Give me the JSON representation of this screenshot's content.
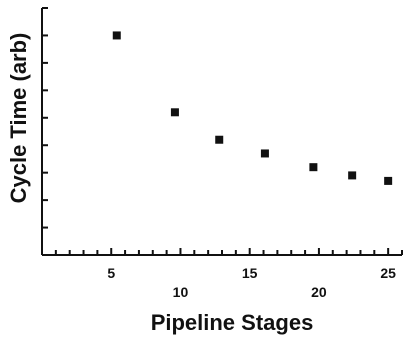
{
  "chart_data": {
    "type": "scatter",
    "title": "",
    "xlabel": "Pipeline Stages",
    "ylabel": "Cycle Time (arb)",
    "xlim": [
      0,
      26
    ],
    "ylim": [
      0,
      9
    ],
    "grid": false,
    "x_ticks_major_labels": [
      "5",
      "10",
      "15",
      "20",
      "25"
    ],
    "x_ticks_major": [
      5,
      10,
      15,
      20,
      25
    ],
    "x_tick_label_row": [
      0,
      1,
      0,
      1,
      0
    ],
    "series": [
      {
        "x": [
          5.4,
          9.6,
          12.8,
          16.1,
          19.6,
          22.4,
          25.0
        ],
        "y": [
          8.0,
          5.2,
          4.2,
          3.7,
          3.2,
          2.9,
          2.7
        ]
      }
    ]
  }
}
